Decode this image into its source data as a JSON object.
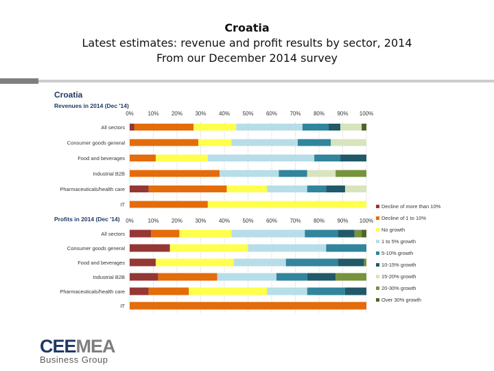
{
  "header": {
    "title": "Croatia",
    "subtitle": "Latest estimates: revenue and profit results by sector, 2014",
    "subtitle2": "From our December 2014 survey"
  },
  "logo": {
    "part1": "CEE",
    "part2": "MEA",
    "tagline": "Business Group"
  },
  "chart_data": {
    "type": "bar",
    "orientation": "horizontal",
    "stacked": true,
    "title": "Croatia",
    "xlim": [
      0,
      100
    ],
    "xticks": [
      "0%",
      "10%",
      "20%",
      "30%",
      "40%",
      "50%",
      "60%",
      "70%",
      "80%",
      "90%",
      "100%"
    ],
    "legend_position": "right",
    "series": [
      {
        "name": "Decline of more than 10%",
        "color": "#953735"
      },
      {
        "name": "Decline of 1 to 10%",
        "color": "#e46c0a"
      },
      {
        "name": "No growth",
        "color": "#ffff4d"
      },
      {
        "name": "1 to 5% growth",
        "color": "#b7dee8"
      },
      {
        "name": "5-10% growth",
        "color": "#31859c"
      },
      {
        "name": "10-15% growth",
        "color": "#215968"
      },
      {
        "name": "15-20% growth",
        "color": "#d7e4bd"
      },
      {
        "name": "20-30% growth",
        "color": "#77933c"
      },
      {
        "name": "Over 30% growth",
        "color": "#4f6228"
      }
    ],
    "panels": [
      {
        "title": "Revenues in 2014 (Dec '14)",
        "categories": [
          "All sectors",
          "Consumer goods general",
          "Food and beverages",
          "Industrial B2B",
          "Pharmaceuticals/health care",
          "IT"
        ],
        "values": [
          [
            2,
            25,
            18,
            28,
            11,
            5,
            9,
            0,
            2
          ],
          [
            0,
            29,
            14,
            28,
            14,
            0,
            15,
            0,
            0
          ],
          [
            0,
            11,
            22,
            45,
            11,
            11,
            0,
            0,
            0
          ],
          [
            0,
            38,
            0,
            25,
            12,
            0,
            12,
            13,
            0
          ],
          [
            8,
            33,
            17,
            17,
            8,
            8,
            9,
            0,
            0
          ],
          [
            0,
            33,
            67,
            0,
            0,
            0,
            0,
            0,
            0
          ]
        ]
      },
      {
        "title": "Profits in 2014 (Dec '14)",
        "categories": [
          "All sectors",
          "Consumer goods general",
          "Food and beverages",
          "Industrial B2B",
          "Pharmaceuticals/health care",
          "IT"
        ],
        "values": [
          [
            9,
            12,
            22,
            31,
            14,
            7,
            0,
            3,
            2
          ],
          [
            17,
            0,
            33,
            33,
            17,
            0,
            0,
            0,
            0
          ],
          [
            11,
            0,
            33,
            22,
            22,
            11,
            0,
            1,
            0
          ],
          [
            12,
            25,
            0,
            25,
            13,
            12,
            0,
            13,
            0
          ],
          [
            8,
            17,
            33,
            17,
            16,
            9,
            0,
            0,
            0
          ],
          [
            0,
            100,
            0,
            0,
            0,
            0,
            0,
            0,
            0
          ]
        ]
      }
    ]
  }
}
